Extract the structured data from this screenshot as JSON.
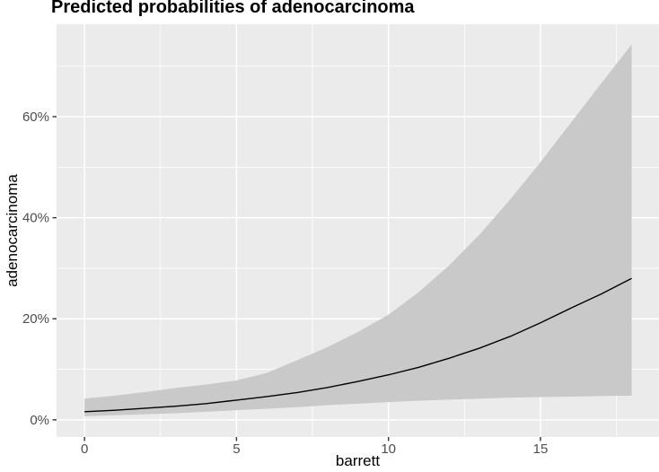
{
  "title": "Predicted probabilities of adenocarcinoma",
  "colors": {
    "figure_bg": "#ffffff",
    "panel_bg": "#ebebeb",
    "grid": "#ffffff",
    "ribbon": "#c9c9c9",
    "fit_line": "#000000",
    "tick_label": "#4d4d4d",
    "tick_mark": "#333333",
    "title_color": "#000000"
  },
  "chart_data": {
    "type": "line",
    "title": "Predicted probabilities of adenocarcinoma",
    "xlabel": "barrett",
    "ylabel": "adenocarcinoma",
    "grid": true,
    "legend_position": "none",
    "x": [
      0,
      1,
      2,
      3,
      4,
      5,
      6,
      7,
      8,
      9,
      10,
      11,
      12,
      13,
      14,
      15,
      16,
      17,
      18
    ],
    "series": [
      {
        "name": "fit",
        "values": [
          1.6,
          1.9,
          2.3,
          2.7,
          3.2,
          3.9,
          4.6,
          5.4,
          6.4,
          7.6,
          8.9,
          10.4,
          12.2,
          14.2,
          16.5,
          19.2,
          22.1,
          24.9,
          28.0
        ]
      },
      {
        "name": "upper_ci",
        "values": [
          4.2,
          4.8,
          5.5,
          6.3,
          7.0,
          7.8,
          9.3,
          11.8,
          14.4,
          17.4,
          20.8,
          25.3,
          30.6,
          36.7,
          43.6,
          51.0,
          58.8,
          66.6,
          74.3
        ]
      },
      {
        "name": "lower_ci",
        "values": [
          0.7,
          0.9,
          1.1,
          1.3,
          1.6,
          1.9,
          2.2,
          2.5,
          2.9,
          3.2,
          3.5,
          3.8,
          4.0,
          4.2,
          4.4,
          4.5,
          4.6,
          4.7,
          4.8
        ]
      }
    ],
    "xlim": [
      -0.92,
      18.9
    ],
    "ylim": [
      -3.4,
      78.3
    ],
    "x_major_breaks": [
      0,
      5,
      10,
      15
    ],
    "x_minor_breaks": [
      2.5,
      7.5,
      12.5,
      17.5
    ],
    "y_major_breaks": [
      0,
      20,
      40,
      60
    ],
    "y_minor_breaks": [
      10,
      30,
      50,
      70
    ],
    "x_tick_labels": [
      "0",
      "5",
      "10",
      "15"
    ],
    "y_tick_labels": [
      "0%",
      "20%",
      "40%",
      "60%"
    ]
  }
}
